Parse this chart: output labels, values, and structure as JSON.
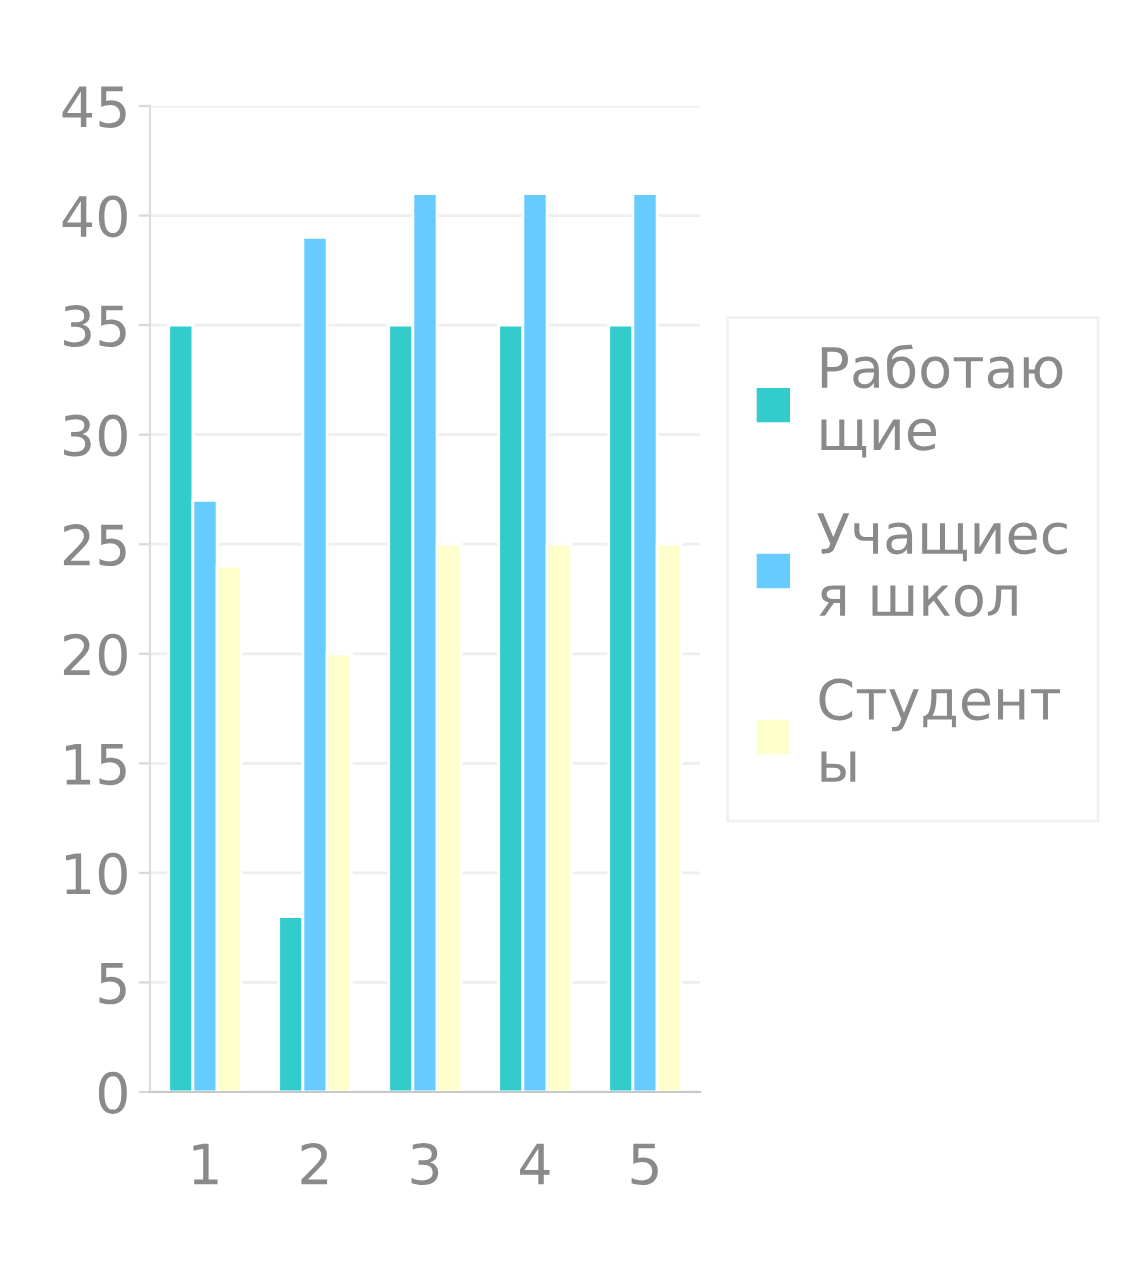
{
  "chart_data": {
    "type": "bar",
    "categories": [
      "1",
      "2",
      "3",
      "4",
      "5"
    ],
    "series": [
      {
        "name": "Работающие",
        "color": "#33cccc",
        "values": [
          35,
          8,
          35,
          35,
          35
        ]
      },
      {
        "name": "Учащиеся школ",
        "color": "#66ccff",
        "values": [
          27,
          39,
          41,
          41,
          41
        ]
      },
      {
        "name": "Студенты",
        "color": "#ffffcc",
        "values": [
          24,
          20,
          25,
          25,
          25
        ]
      }
    ],
    "ylim": [
      0,
      45
    ],
    "yticks": [
      0,
      5,
      10,
      15,
      20,
      25,
      30,
      35,
      40,
      45
    ],
    "grid": "y",
    "legend": "right"
  }
}
